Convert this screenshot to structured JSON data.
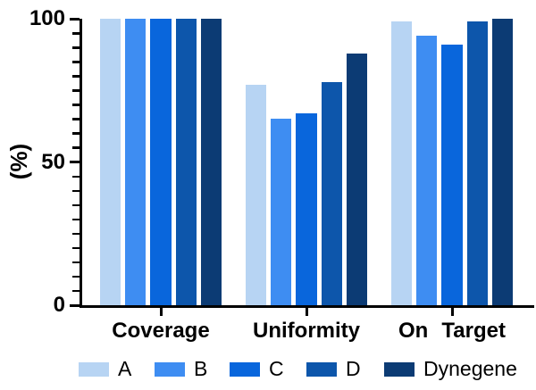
{
  "chart_data": {
    "type": "bar",
    "title": "",
    "xlabel": "",
    "ylabel": "(%)",
    "categories": [
      "Coverage",
      "Uniformity",
      "On Target"
    ],
    "series": [
      {
        "name": "A",
        "color": "#B7D4F3",
        "values": [
          100,
          77,
          99
        ]
      },
      {
        "name": "B",
        "color": "#3E8DF2",
        "values": [
          100,
          65,
          94
        ]
      },
      {
        "name": "C",
        "color": "#0966DC",
        "values": [
          100,
          67,
          91
        ]
      },
      {
        "name": "D",
        "color": "#0D56AB",
        "values": [
          100,
          78,
          99
        ]
      },
      {
        "name": "Dynegene",
        "color": "#0C3B74",
        "values": [
          100,
          88,
          100
        ]
      }
    ],
    "ylim": [
      0,
      100
    ],
    "yticks_major": [
      0,
      50,
      100
    ],
    "ytick_labels": [
      "0",
      "50",
      "100"
    ],
    "ytick_minor_step": 5,
    "grid": false,
    "legend_position": "bottom",
    "axis_color": "#000000",
    "background_color": "#FFFFFF"
  }
}
